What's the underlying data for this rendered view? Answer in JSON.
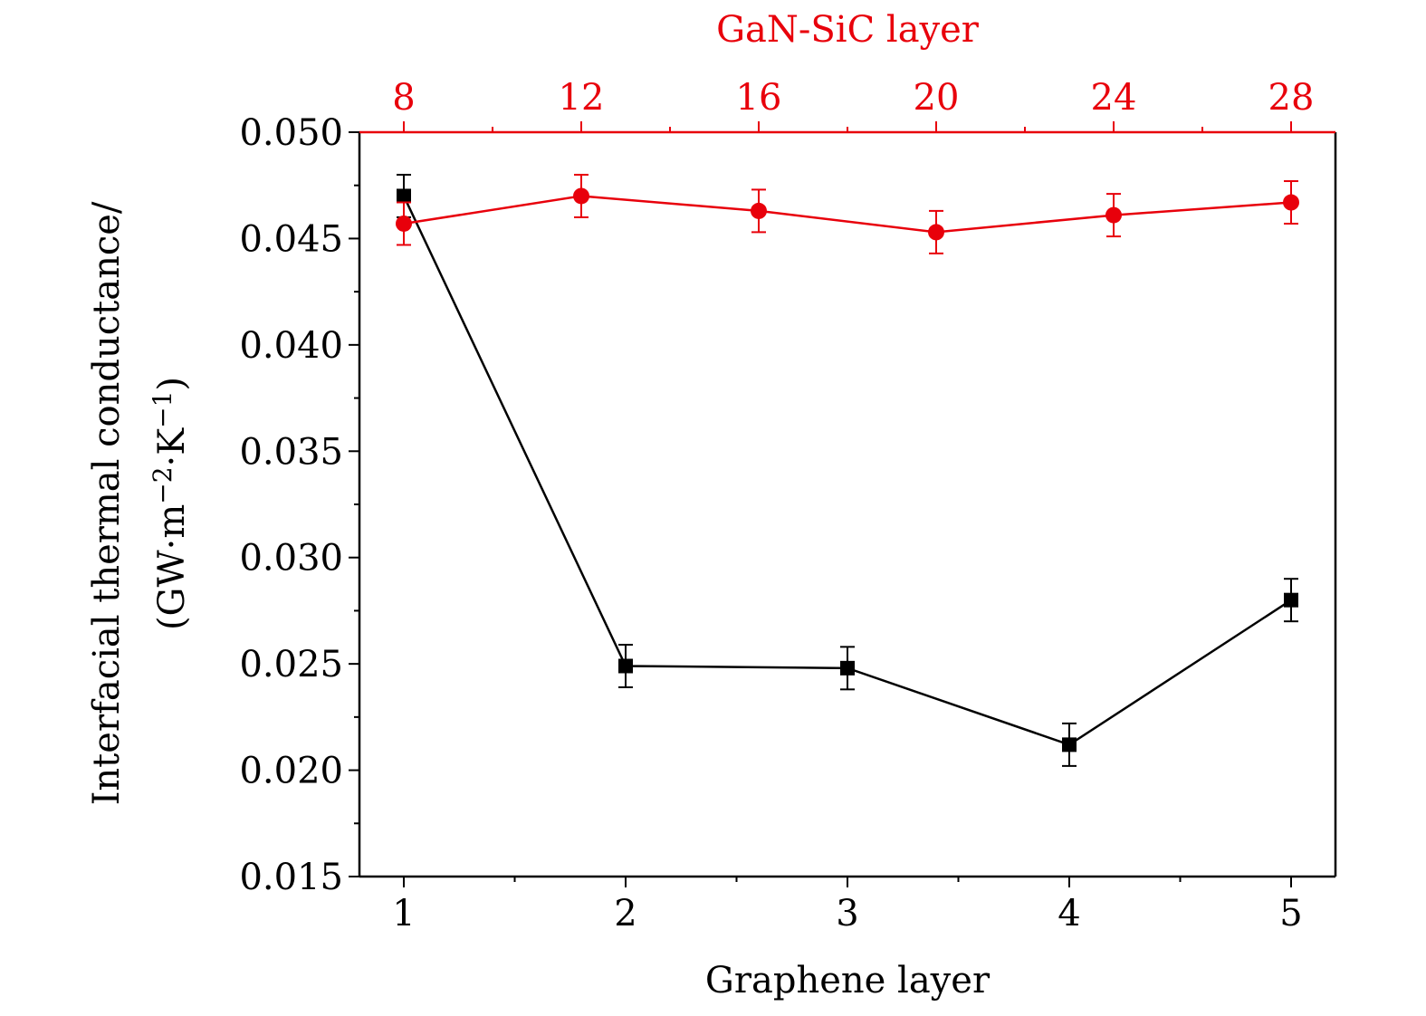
{
  "chart_data": {
    "type": "line",
    "xlabel": "Graphene layer",
    "x2label": "GaN-SiC layer",
    "ylabel_line1": "Interfacial thermal conductance/",
    "ylabel_line2_base": "(GW·m",
    "ylabel_line2_exp1": "−2",
    "ylabel_line2_mid": "·K",
    "ylabel_line2_exp2": "−1",
    "ylabel_line2_end": ")",
    "xlim": [
      0.8,
      5.2
    ],
    "x2lim": [
      7,
      29
    ],
    "ylim": [
      0.015,
      0.05
    ],
    "xticks": [
      "1",
      "2",
      "3",
      "4",
      "5"
    ],
    "x2ticks": [
      "8",
      "12",
      "16",
      "20",
      "24",
      "28"
    ],
    "yticks": [
      "0.015",
      "0.020",
      "0.025",
      "0.030",
      "0.035",
      "0.040",
      "0.045",
      "0.050"
    ],
    "series": [
      {
        "axis": "bottom",
        "color": "#000000",
        "marker": "square",
        "x": [
          1,
          2,
          3,
          4,
          5
        ],
        "y": [
          0.047,
          0.0249,
          0.0248,
          0.0212,
          0.028
        ],
        "err": [
          0.001,
          0.001,
          0.001,
          0.001,
          0.001
        ]
      },
      {
        "axis": "top",
        "color": "#e8000b",
        "marker": "circle",
        "x": [
          8,
          12,
          16,
          20,
          24,
          28
        ],
        "y": [
          0.0457,
          0.047,
          0.0463,
          0.0453,
          0.0461,
          0.0467
        ],
        "err": [
          0.001,
          0.001,
          0.001,
          0.001,
          0.001,
          0.001
        ]
      }
    ]
  }
}
